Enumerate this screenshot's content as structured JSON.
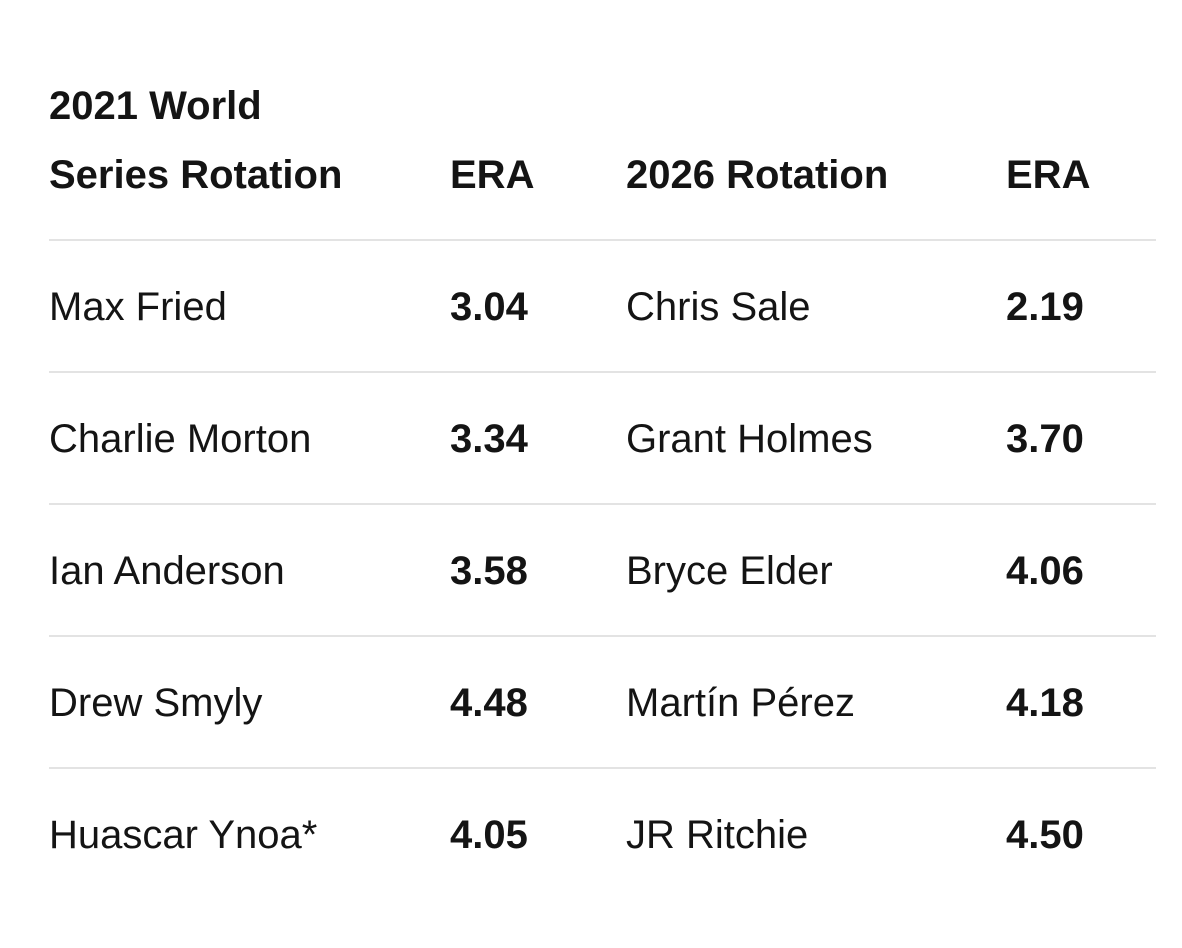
{
  "table": {
    "headers": [
      "2021 World Series Rotation",
      "ERA",
      "2026 Rotation",
      "ERA"
    ],
    "rows": [
      [
        "Max Fried",
        "3.04",
        "Chris Sale",
        "2.19"
      ],
      [
        "Charlie Morton",
        "3.34",
        "Grant Holmes",
        "3.70"
      ],
      [
        "Ian Anderson",
        "3.58",
        "Bryce Elder",
        "4.06"
      ],
      [
        "Drew Smyly",
        "4.48",
        "Martín Pérez",
        "4.18"
      ],
      [
        "Huascar Ynoa*",
        "4.05",
        "JR Ritchie",
        "4.50"
      ]
    ]
  }
}
